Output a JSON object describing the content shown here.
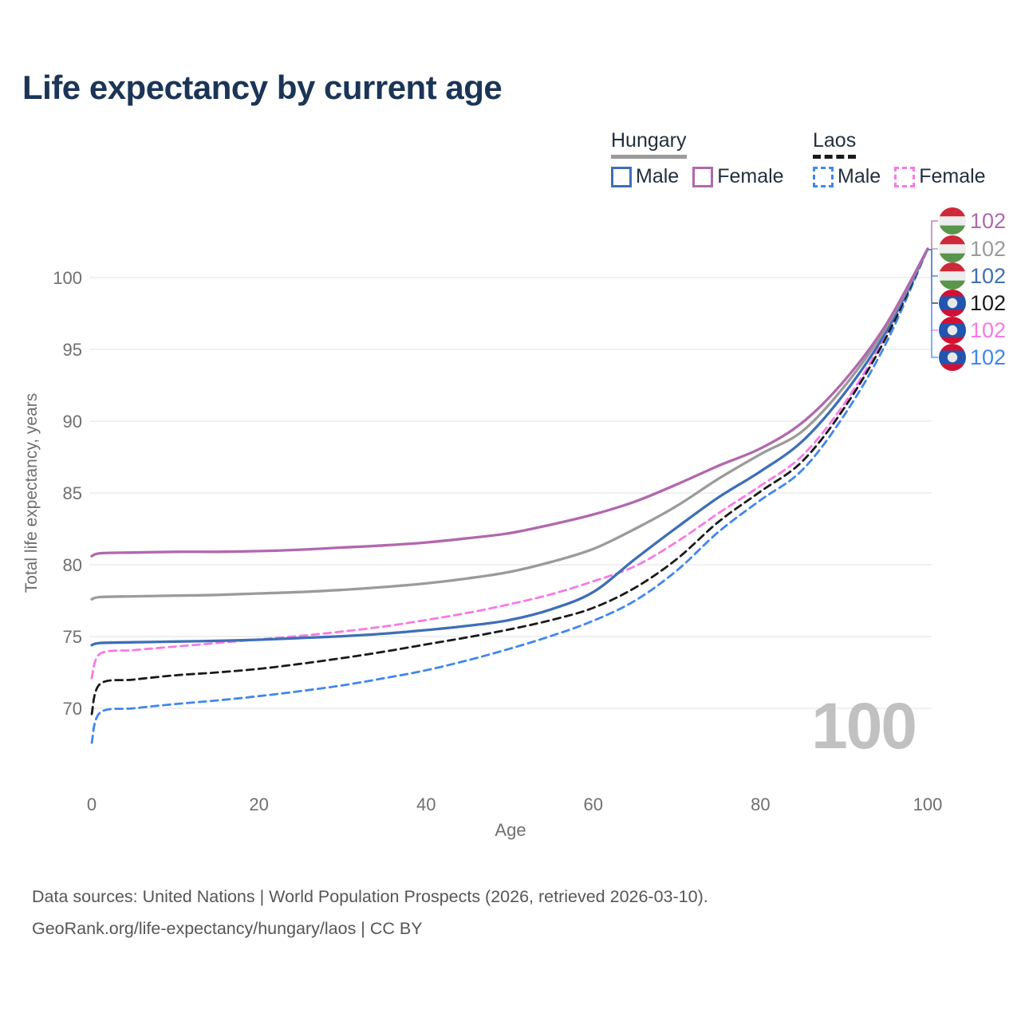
{
  "title": "Life expectancy by current age",
  "watermark_age": "100",
  "legend": {
    "groups": [
      {
        "name": "Hungary",
        "rule_style": "solid",
        "rule_color": "#9b9b9b",
        "items": [
          {
            "label": "Male",
            "color": "#3e6fb7",
            "line_style": "solid"
          },
          {
            "label": "Female",
            "color": "#b168ae",
            "line_style": "solid"
          }
        ]
      },
      {
        "name": "Laos",
        "rule_style": "dashed",
        "rule_color": "#1a1a1a",
        "items": [
          {
            "label": "Male",
            "color": "#4186f0",
            "line_style": "dashed"
          },
          {
            "label": "Female",
            "color": "#f879e4",
            "line_style": "dashed"
          }
        ]
      }
    ]
  },
  "source_line1": "Data sources: United Nations | World Population Prospects (2026, retrieved 2026-03-10).",
  "source_line2": "GeoRank.org/life-expectancy/hungary/laos | CC BY",
  "chart_data": {
    "type": "line",
    "xlabel": "Age",
    "ylabel": "Total life expectancy, years",
    "x_ticks": [
      0,
      20,
      40,
      60,
      80,
      100
    ],
    "y_ticks": [
      70,
      75,
      80,
      85,
      90,
      95,
      100
    ],
    "xlim": [
      0,
      100
    ],
    "ylim": [
      67,
      103
    ],
    "grid": "horizontal",
    "legend_position": "top-right",
    "series": [
      {
        "id": "hungary-female",
        "country": "Hungary",
        "sex": "Female",
        "color": "#b168ae",
        "line_style": "solid",
        "end_label": "102",
        "flag": "hungary",
        "points": [
          [
            0,
            80.6
          ],
          [
            1,
            80.8
          ],
          [
            5,
            80.85
          ],
          [
            10,
            80.9
          ],
          [
            15,
            80.9
          ],
          [
            20,
            80.95
          ],
          [
            25,
            81.05
          ],
          [
            30,
            81.2
          ],
          [
            35,
            81.35
          ],
          [
            40,
            81.55
          ],
          [
            45,
            81.85
          ],
          [
            50,
            82.2
          ],
          [
            55,
            82.8
          ],
          [
            60,
            83.5
          ],
          [
            65,
            84.4
          ],
          [
            70,
            85.6
          ],
          [
            75,
            86.9
          ],
          [
            80,
            88.1
          ],
          [
            85,
            89.9
          ],
          [
            90,
            92.8
          ],
          [
            95,
            96.7
          ],
          [
            100,
            102
          ]
        ]
      },
      {
        "id": "hungary-both",
        "country": "Hungary",
        "sex": "Both sexes",
        "color": "#9b9b9b",
        "line_style": "solid",
        "end_label": "102",
        "flag": "hungary",
        "points": [
          [
            0,
            77.6
          ],
          [
            1,
            77.75
          ],
          [
            5,
            77.8
          ],
          [
            10,
            77.85
          ],
          [
            15,
            77.9
          ],
          [
            20,
            78.0
          ],
          [
            25,
            78.1
          ],
          [
            30,
            78.25
          ],
          [
            35,
            78.45
          ],
          [
            40,
            78.7
          ],
          [
            45,
            79.05
          ],
          [
            50,
            79.5
          ],
          [
            55,
            80.2
          ],
          [
            60,
            81.1
          ],
          [
            65,
            82.5
          ],
          [
            70,
            84.1
          ],
          [
            75,
            86.0
          ],
          [
            80,
            87.7
          ],
          [
            85,
            89.3
          ],
          [
            90,
            92.4
          ],
          [
            95,
            96.5
          ],
          [
            100,
            102
          ]
        ]
      },
      {
        "id": "hungary-male",
        "country": "Hungary",
        "sex": "Male",
        "color": "#3e6fb7",
        "line_style": "solid",
        "end_label": "102",
        "flag": "hungary",
        "points": [
          [
            0,
            74.4
          ],
          [
            1,
            74.55
          ],
          [
            5,
            74.6
          ],
          [
            10,
            74.65
          ],
          [
            15,
            74.7
          ],
          [
            20,
            74.78
          ],
          [
            25,
            74.9
          ],
          [
            30,
            75.02
          ],
          [
            35,
            75.2
          ],
          [
            40,
            75.45
          ],
          [
            45,
            75.75
          ],
          [
            50,
            76.15
          ],
          [
            55,
            76.9
          ],
          [
            60,
            78.1
          ],
          [
            65,
            80.4
          ],
          [
            70,
            82.6
          ],
          [
            75,
            84.7
          ],
          [
            80,
            86.5
          ],
          [
            85,
            88.6
          ],
          [
            90,
            91.9
          ],
          [
            95,
            96.2
          ],
          [
            100,
            102
          ]
        ]
      },
      {
        "id": "laos-both",
        "country": "Laos",
        "sex": "Both sexes",
        "color": "#1a1a1a",
        "line_style": "dashed",
        "end_label": "102",
        "flag": "laos",
        "points": [
          [
            0,
            69.6
          ],
          [
            1,
            71.7
          ],
          [
            5,
            72.0
          ],
          [
            10,
            72.3
          ],
          [
            15,
            72.5
          ],
          [
            20,
            72.75
          ],
          [
            25,
            73.1
          ],
          [
            30,
            73.5
          ],
          [
            35,
            73.95
          ],
          [
            40,
            74.45
          ],
          [
            45,
            74.95
          ],
          [
            50,
            75.5
          ],
          [
            55,
            76.15
          ],
          [
            60,
            77.0
          ],
          [
            65,
            78.4
          ],
          [
            70,
            80.4
          ],
          [
            75,
            83.0
          ],
          [
            80,
            85.1
          ],
          [
            85,
            87.2
          ],
          [
            90,
            90.9
          ],
          [
            95,
            95.8
          ],
          [
            100,
            102
          ]
        ]
      },
      {
        "id": "laos-female",
        "country": "Laos",
        "sex": "Female",
        "color": "#f879e4",
        "line_style": "dashed",
        "end_label": "102",
        "flag": "laos",
        "points": [
          [
            0,
            72.1
          ],
          [
            1,
            73.8
          ],
          [
            5,
            74.05
          ],
          [
            10,
            74.3
          ],
          [
            15,
            74.55
          ],
          [
            20,
            74.8
          ],
          [
            25,
            75.05
          ],
          [
            30,
            75.35
          ],
          [
            35,
            75.7
          ],
          [
            40,
            76.15
          ],
          [
            45,
            76.65
          ],
          [
            50,
            77.25
          ],
          [
            55,
            77.95
          ],
          [
            60,
            78.85
          ],
          [
            65,
            79.9
          ],
          [
            70,
            81.6
          ],
          [
            75,
            83.6
          ],
          [
            80,
            85.5
          ],
          [
            85,
            87.6
          ],
          [
            90,
            91.2
          ],
          [
            95,
            96.0
          ],
          [
            100,
            102
          ]
        ]
      },
      {
        "id": "laos-male",
        "country": "Laos",
        "sex": "Male",
        "color": "#4186f0",
        "line_style": "dashed",
        "end_label": "102",
        "flag": "laos",
        "points": [
          [
            0,
            67.6
          ],
          [
            1,
            69.7
          ],
          [
            5,
            70.0
          ],
          [
            10,
            70.3
          ],
          [
            15,
            70.55
          ],
          [
            20,
            70.85
          ],
          [
            25,
            71.2
          ],
          [
            30,
            71.6
          ],
          [
            35,
            72.1
          ],
          [
            40,
            72.65
          ],
          [
            45,
            73.35
          ],
          [
            50,
            74.15
          ],
          [
            55,
            75.05
          ],
          [
            60,
            76.1
          ],
          [
            65,
            77.5
          ],
          [
            70,
            79.6
          ],
          [
            75,
            82.3
          ],
          [
            80,
            84.5
          ],
          [
            85,
            86.6
          ],
          [
            90,
            90.4
          ],
          [
            95,
            95.4
          ],
          [
            100,
            102
          ]
        ]
      }
    ],
    "flag_colors": {
      "hungary": [
        "#ce2939",
        "#ededed",
        "#59954a"
      ],
      "laos": [
        "#d21034",
        "#2056b0",
        "#e8e8e8"
      ]
    }
  }
}
